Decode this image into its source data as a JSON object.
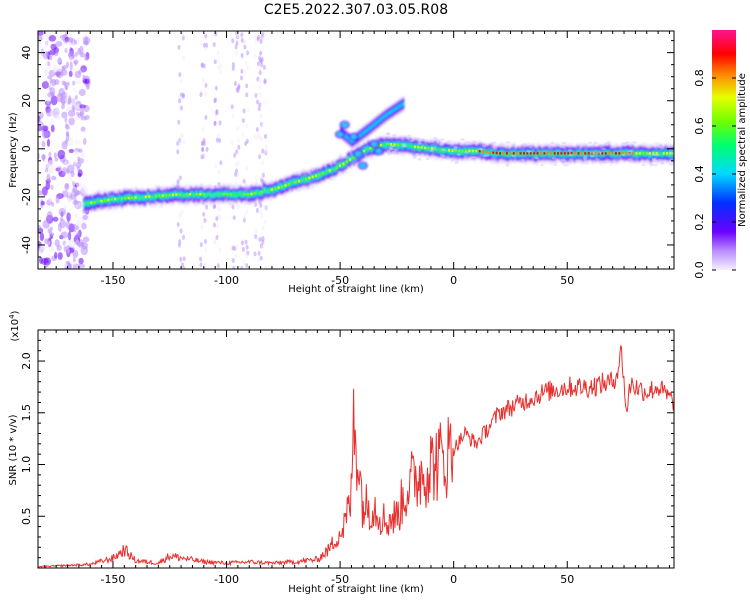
{
  "title": "C2E5.2022.307.03.05.R08",
  "chart_data": [
    {
      "type": "heatmap",
      "xlabel": "Height of straight line (km)",
      "ylabel": "Frequency (Hz)",
      "xlim": [
        -183,
        97
      ],
      "ylim": [
        -50,
        49
      ],
      "xticks": [
        -150,
        -100,
        -50,
        0,
        50
      ],
      "yticks": [
        -40,
        -20,
        0,
        20,
        40
      ],
      "colorbar": {
        "label": "Normalized spectral amplitude",
        "range": [
          0,
          1
        ],
        "ticks": [
          "0.0",
          "0.2",
          "0.4",
          "0.6",
          "0.8"
        ]
      },
      "ridge": {
        "x": [
          -163,
          -150,
          -135,
          -120,
          -105,
          -90,
          -80,
          -70,
          -60,
          -52,
          -45,
          -38,
          -30,
          -20,
          -10,
          0,
          10,
          20,
          40,
          60,
          80,
          97
        ],
        "y": [
          -23,
          -21,
          -20,
          -19,
          -19,
          -19,
          -17,
          -14,
          -11,
          -8,
          -4,
          0,
          2,
          1,
          0,
          -1,
          -1,
          -2,
          -2,
          -2,
          -2,
          -2
        ]
      },
      "side_branch": {
        "x": [
          -50,
          -45,
          -38,
          -30,
          -22
        ],
        "y": [
          7,
          3,
          8,
          14,
          19
        ]
      }
    },
    {
      "type": "line",
      "xlabel": "Height of straight line (km)",
      "ylabel": "SNR (10 * v/v)",
      "y_multiplier": "(x10^4)",
      "xlim": [
        -183,
        97
      ],
      "ylim": [
        0,
        2.3
      ],
      "xticks": [
        -150,
        -100,
        -50,
        0,
        50
      ],
      "yticks": [
        0.5,
        1.0,
        1.5,
        2.0
      ],
      "series_color": "#e8312f",
      "x": [
        -183,
        -160,
        -150,
        -145,
        -140,
        -130,
        -125,
        -110,
        -100,
        -90,
        -80,
        -70,
        -60,
        -55,
        -50,
        -47,
        -45,
        -44,
        -40,
        -35,
        -30,
        -25,
        -20,
        -15,
        -10,
        -5,
        0,
        5,
        10,
        15,
        20,
        30,
        40,
        50,
        60,
        65,
        70,
        72,
        74,
        76,
        78,
        80,
        85,
        90,
        97
      ],
      "y": [
        0.01,
        0.03,
        0.08,
        0.15,
        0.06,
        0.04,
        0.1,
        0.05,
        0.04,
        0.05,
        0.04,
        0.05,
        0.07,
        0.15,
        0.3,
        0.5,
        0.7,
        1.5,
        0.6,
        0.6,
        0.45,
        0.5,
        0.8,
        0.9,
        1.0,
        1.05,
        1.15,
        1.3,
        1.2,
        1.35,
        1.5,
        1.6,
        1.7,
        1.75,
        1.75,
        1.78,
        1.8,
        1.9,
        2.1,
        1.5,
        1.8,
        1.75,
        1.7,
        1.75,
        1.6
      ]
    }
  ]
}
